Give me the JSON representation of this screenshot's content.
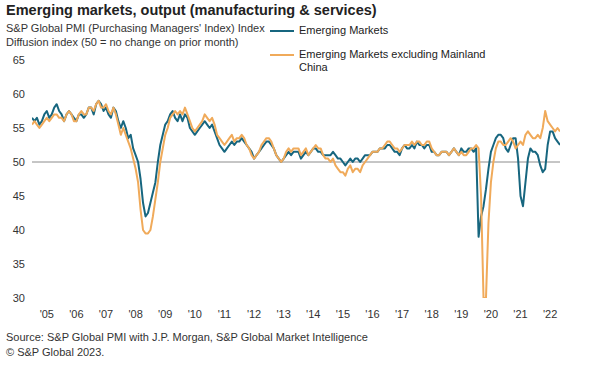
{
  "chart_data": {
    "type": "line",
    "title": "Emerging markets, output (manufacturing & services)",
    "subtitle": [
      "S&P Global PMI (Purchasing Managers' Index) Index",
      "Diffusion index (50 = no change on prior month)"
    ],
    "source": [
      "Source: S&P Global PMI with J.P. Morgan, S&P Global Market Intelligence",
      "© S&P Global 2023."
    ],
    "categories": [
      null,
      null,
      null,
      null,
      null,
      null,
      "'05",
      null,
      null,
      null,
      null,
      null,
      null,
      null,
      null,
      null,
      null,
      null,
      "'06",
      null,
      null,
      null,
      null,
      null,
      null,
      null,
      null,
      null,
      null,
      null,
      "'07",
      null,
      null,
      null,
      null,
      null,
      null,
      null,
      null,
      null,
      null,
      null,
      "'08",
      null,
      null,
      null,
      null,
      null,
      null,
      null,
      null,
      null,
      null,
      null,
      "'09",
      null,
      null,
      null,
      null,
      null,
      null,
      null,
      null,
      null,
      null,
      null,
      "'10",
      null,
      null,
      null,
      null,
      null,
      null,
      null,
      null,
      null,
      null,
      null,
      "'11",
      null,
      null,
      null,
      null,
      null,
      null,
      null,
      null,
      null,
      null,
      null,
      "'12",
      null,
      null,
      null,
      null,
      null,
      null,
      null,
      null,
      null,
      null,
      null,
      "'13",
      null,
      null,
      null,
      null,
      null,
      null,
      null,
      null,
      null,
      null,
      null,
      "'14",
      null,
      null,
      null,
      null,
      null,
      null,
      null,
      null,
      null,
      null,
      null,
      "'15",
      null,
      null,
      null,
      null,
      null,
      null,
      null,
      null,
      null,
      null,
      null,
      "'16",
      null,
      null,
      null,
      null,
      null,
      null,
      null,
      null,
      null,
      null,
      null,
      "'17",
      null,
      null,
      null,
      null,
      null,
      null,
      null,
      null,
      null,
      null,
      null,
      "'18",
      null,
      null,
      null,
      null,
      null,
      null,
      null,
      null,
      null,
      null,
      null,
      "'19",
      null,
      null,
      null,
      null,
      null,
      null,
      null,
      null,
      null,
      null,
      null,
      "'20",
      null,
      null,
      null,
      null,
      null,
      null,
      null,
      null,
      null,
      null,
      null,
      "'21",
      null,
      null,
      null,
      null,
      null,
      null,
      null,
      null,
      null,
      null,
      null,
      "'22",
      null,
      null,
      null,
      null
    ],
    "series": [
      {
        "name": "Emerging Markets",
        "color": "#17667f",
        "values": [
          56.5,
          56,
          56.5,
          55.5,
          56,
          57,
          57.5,
          56.5,
          57,
          58,
          58.5,
          57.5,
          57,
          56,
          57,
          57.5,
          57,
          56.5,
          56,
          57,
          57,
          56.5,
          57,
          58,
          58,
          57,
          58.5,
          59,
          58.5,
          57.5,
          58,
          57,
          56.5,
          58,
          57.5,
          56,
          55,
          56,
          55,
          53.5,
          54,
          52,
          51,
          50,
          47.5,
          44,
          42,
          42.5,
          44,
          45.5,
          47,
          50,
          52.5,
          54,
          55.5,
          56,
          57,
          57.5,
          56.5,
          56,
          57,
          56,
          57,
          56.5,
          55,
          54.5,
          54,
          54.5,
          55,
          55.5,
          56,
          55.5,
          55,
          55.5,
          54.5,
          53.5,
          52.5,
          52,
          51.5,
          52,
          52.5,
          53,
          52.5,
          53,
          53,
          53.5,
          53,
          52.5,
          52,
          51.5,
          50.5,
          51,
          51.5,
          52,
          52.5,
          53,
          53,
          52.5,
          52,
          51,
          50.5,
          50,
          50.5,
          51,
          51.5,
          51,
          51.5,
          51.5,
          51.5,
          50.5,
          51,
          51.5,
          51,
          51.5,
          52,
          52,
          51.5,
          51.5,
          51,
          51,
          51,
          51,
          51.5,
          51,
          50.5,
          50.5,
          50,
          49.5,
          50,
          50.5,
          50,
          50.5,
          50.5,
          50,
          50.5,
          51,
          51,
          51,
          51.5,
          51.5,
          51.5,
          52,
          52,
          52,
          52.5,
          52.5,
          52,
          51.5,
          51.5,
          51,
          52,
          52.5,
          52,
          52,
          52.5,
          52,
          53,
          52.5,
          52.5,
          52,
          52.5,
          52.5,
          51.5,
          51.5,
          51,
          51,
          51.5,
          51.5,
          51.5,
          51,
          51.5,
          52,
          51.5,
          51,
          52,
          51.5,
          51.5,
          52,
          52,
          51.5,
          52,
          39,
          42,
          43.5,
          46,
          49,
          51.5,
          52.5,
          53.5,
          54,
          54,
          53.5,
          52,
          51.5,
          52.5,
          53.5,
          53.5,
          50.5,
          45,
          43.5,
          47,
          50.5,
          52,
          51.5,
          51.5,
          51,
          49.5,
          48.5,
          49,
          52.5,
          54.5,
          54.5,
          53.5,
          53,
          52.5
        ]
      },
      {
        "name": "Emerging Markets excluding Mainland China",
        "color": "#f0aa5a",
        "values": [
          55.5,
          56,
          55.5,
          55,
          55.5,
          56,
          56.5,
          56,
          56.5,
          57,
          57,
          56.5,
          56.5,
          56,
          57,
          57.5,
          57,
          56,
          56,
          57,
          57.5,
          57,
          57,
          58,
          58,
          57.5,
          58.5,
          59,
          58,
          58,
          58.5,
          57.5,
          57,
          58,
          57,
          55.5,
          54,
          55,
          54,
          53,
          52,
          50.5,
          49,
          47,
          43,
          40,
          39.5,
          39.5,
          40,
          42,
          44.5,
          47,
          50,
          52,
          54,
          55,
          56.5,
          57,
          57.5,
          57,
          57.5,
          57,
          58,
          57,
          56,
          55,
          54.5,
          55,
          55.5,
          56,
          57,
          56.5,
          56,
          56.5,
          55.5,
          54,
          53.5,
          53,
          52.5,
          53,
          53.5,
          54,
          53,
          53.5,
          53.5,
          54,
          53.5,
          52.5,
          52,
          51,
          50.5,
          51,
          51.5,
          52.5,
          53,
          53.5,
          53.5,
          53,
          52,
          51,
          50.5,
          50,
          50.5,
          51.5,
          52,
          51.5,
          52,
          52,
          52,
          51,
          51.5,
          52,
          51,
          51.5,
          52,
          52.5,
          52,
          52,
          51,
          50.5,
          50.5,
          50,
          50.5,
          49.5,
          49,
          48.5,
          48.5,
          48,
          49,
          49.5,
          48.5,
          49,
          49,
          48.5,
          49.5,
          50,
          50.5,
          51,
          51.5,
          51.5,
          51.5,
          52,
          52,
          52.5,
          53,
          53,
          52.5,
          52,
          52,
          51.5,
          52,
          52.5,
          52.5,
          52.5,
          53,
          52.5,
          53,
          53,
          52.5,
          52.5,
          53,
          53,
          52,
          51.5,
          51,
          51,
          51.5,
          51.5,
          51.5,
          51,
          51.5,
          52,
          51.5,
          51,
          51.5,
          51,
          51,
          51.5,
          52,
          52,
          52.5,
          52,
          45,
          30,
          30,
          41,
          47,
          50,
          52,
          53,
          53,
          52.5,
          52.5,
          53,
          53.5,
          53,
          52,
          52.5,
          53,
          52.5,
          54,
          54.5,
          54,
          53.5,
          53.5,
          54,
          53.5,
          55,
          57.5,
          56,
          55.5,
          55,
          54.5,
          55,
          54.5
        ]
      }
    ],
    "ylim": [
      30,
      65
    ],
    "yticks": [
      30,
      35,
      40,
      45,
      50,
      55,
      60,
      65
    ],
    "reference_line": 50,
    "grid": false,
    "legend": "top"
  }
}
